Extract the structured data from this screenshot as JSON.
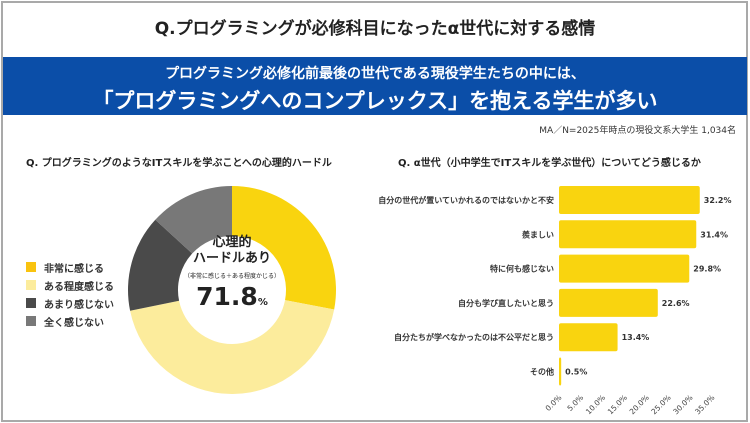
{
  "title": "Q.プログラミングが必修科目になったα世代に対する感情",
  "banner": {
    "line1": "プログラミング必修化前最後の世代である現役学生たちの中には、",
    "line2": "「プログラミングへのコンプレックス」を抱える学生が多い"
  },
  "note": "MA／N=2025年時点の現役文系大学生 1,034名",
  "chart_data": [
    {
      "type": "pie",
      "title": "Q. プログラミングのようなITスキルを学ぶことへの心理的ハードル",
      "categories": [
        "非常に感じる",
        "ある程度感じる",
        "あまり感じない",
        "全く感じない"
      ],
      "values": [
        28.0,
        43.8,
        15.0,
        13.2
      ],
      "colors": [
        "#f9d40f",
        "#fcec9c",
        "#4a4a4a",
        "#787878"
      ],
      "center_label": {
        "line1": "心理的",
        "line2": "ハードルあり",
        "sub": "（非常に感じる＋ある程度かじる）",
        "value": "71.8",
        "unit": "%"
      },
      "legend": "left"
    },
    {
      "type": "bar",
      "orientation": "horizontal",
      "title": "Q. α世代（小中学生でITスキルを学ぶ世代）についてどう感じるか",
      "categories": [
        "自分の世代が置いていかれるのではないかと不安",
        "羨ましい",
        "特に何も感じない",
        "自分も学び直したいと思う",
        "自分たちが学べなかったのは不公平だと思う",
        "その他"
      ],
      "values": [
        32.2,
        31.4,
        29.8,
        22.6,
        13.4,
        0.5
      ],
      "data_labels": [
        "32.2%",
        "31.4%",
        "29.8%",
        "22.6%",
        "13.4%",
        "0.5%"
      ],
      "xlim": [
        0,
        35
      ],
      "xticks": [
        "0.0%",
        "5.0%",
        "10.0%",
        "15.0%",
        "20.0%",
        "25.0%",
        "30.0%",
        "35.0%"
      ],
      "color": "#f9d40f",
      "grid": false
    }
  ]
}
